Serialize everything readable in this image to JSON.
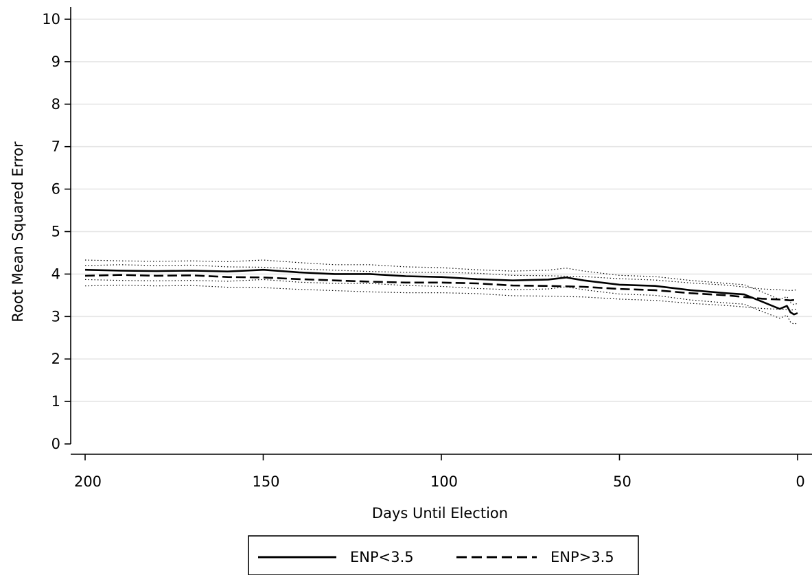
{
  "chart_data": {
    "type": "line",
    "title": "",
    "xlabel": "Days Until Election",
    "ylabel": "Root Mean Squared Error",
    "xlim": [
      200,
      0
    ],
    "ylim": [
      0,
      10
    ],
    "x_ticks": [
      200,
      150,
      100,
      50,
      0
    ],
    "y_ticks": [
      0,
      1,
      2,
      3,
      4,
      5,
      6,
      7,
      8,
      9,
      10
    ],
    "grid": "horizontal",
    "legend_position": "bottom",
    "series": [
      {
        "name": "ENP<3.5",
        "style": "solid",
        "x": [
          200,
          190,
          180,
          170,
          160,
          150,
          140,
          130,
          120,
          110,
          100,
          90,
          80,
          70,
          65,
          60,
          50,
          40,
          30,
          20,
          15,
          10,
          5,
          3,
          2,
          1,
          0
        ],
        "values": [
          4.1,
          4.08,
          4.07,
          4.08,
          4.06,
          4.1,
          4.04,
          4.0,
          4.0,
          3.95,
          3.93,
          3.88,
          3.85,
          3.87,
          3.92,
          3.85,
          3.75,
          3.72,
          3.62,
          3.55,
          3.52,
          3.35,
          3.18,
          3.25,
          3.1,
          3.05,
          3.08
        ],
        "ci_upper": [
          4.33,
          4.31,
          4.3,
          4.31,
          4.29,
          4.33,
          4.27,
          4.22,
          4.22,
          4.17,
          4.15,
          4.1,
          4.07,
          4.09,
          4.14,
          4.07,
          3.97,
          3.94,
          3.85,
          3.78,
          3.75,
          3.58,
          3.4,
          3.47,
          3.33,
          3.28,
          3.31
        ],
        "ci_lower": [
          3.87,
          3.85,
          3.84,
          3.85,
          3.83,
          3.87,
          3.81,
          3.78,
          3.78,
          3.73,
          3.71,
          3.66,
          3.63,
          3.65,
          3.7,
          3.63,
          3.53,
          3.5,
          3.39,
          3.32,
          3.29,
          3.12,
          2.96,
          3.03,
          2.87,
          2.82,
          2.85
        ]
      },
      {
        "name": "ENP>3.5",
        "style": "dashed",
        "x": [
          200,
          190,
          180,
          170,
          160,
          150,
          140,
          130,
          120,
          110,
          100,
          90,
          80,
          70,
          60,
          50,
          40,
          30,
          20,
          10,
          5,
          2,
          0
        ],
        "values": [
          3.96,
          3.98,
          3.96,
          3.97,
          3.93,
          3.92,
          3.88,
          3.85,
          3.82,
          3.8,
          3.8,
          3.78,
          3.73,
          3.72,
          3.7,
          3.65,
          3.62,
          3.55,
          3.5,
          3.42,
          3.4,
          3.38,
          3.4
        ],
        "ci_upper": [
          4.2,
          4.22,
          4.2,
          4.21,
          4.17,
          4.16,
          4.12,
          4.09,
          4.06,
          4.04,
          4.04,
          4.02,
          3.97,
          3.96,
          3.94,
          3.89,
          3.86,
          3.79,
          3.74,
          3.65,
          3.63,
          3.61,
          3.63
        ],
        "ci_lower": [
          3.72,
          3.74,
          3.72,
          3.73,
          3.69,
          3.68,
          3.64,
          3.61,
          3.58,
          3.56,
          3.56,
          3.54,
          3.49,
          3.48,
          3.46,
          3.41,
          3.38,
          3.31,
          3.26,
          3.19,
          3.17,
          3.15,
          3.17
        ]
      }
    ]
  }
}
